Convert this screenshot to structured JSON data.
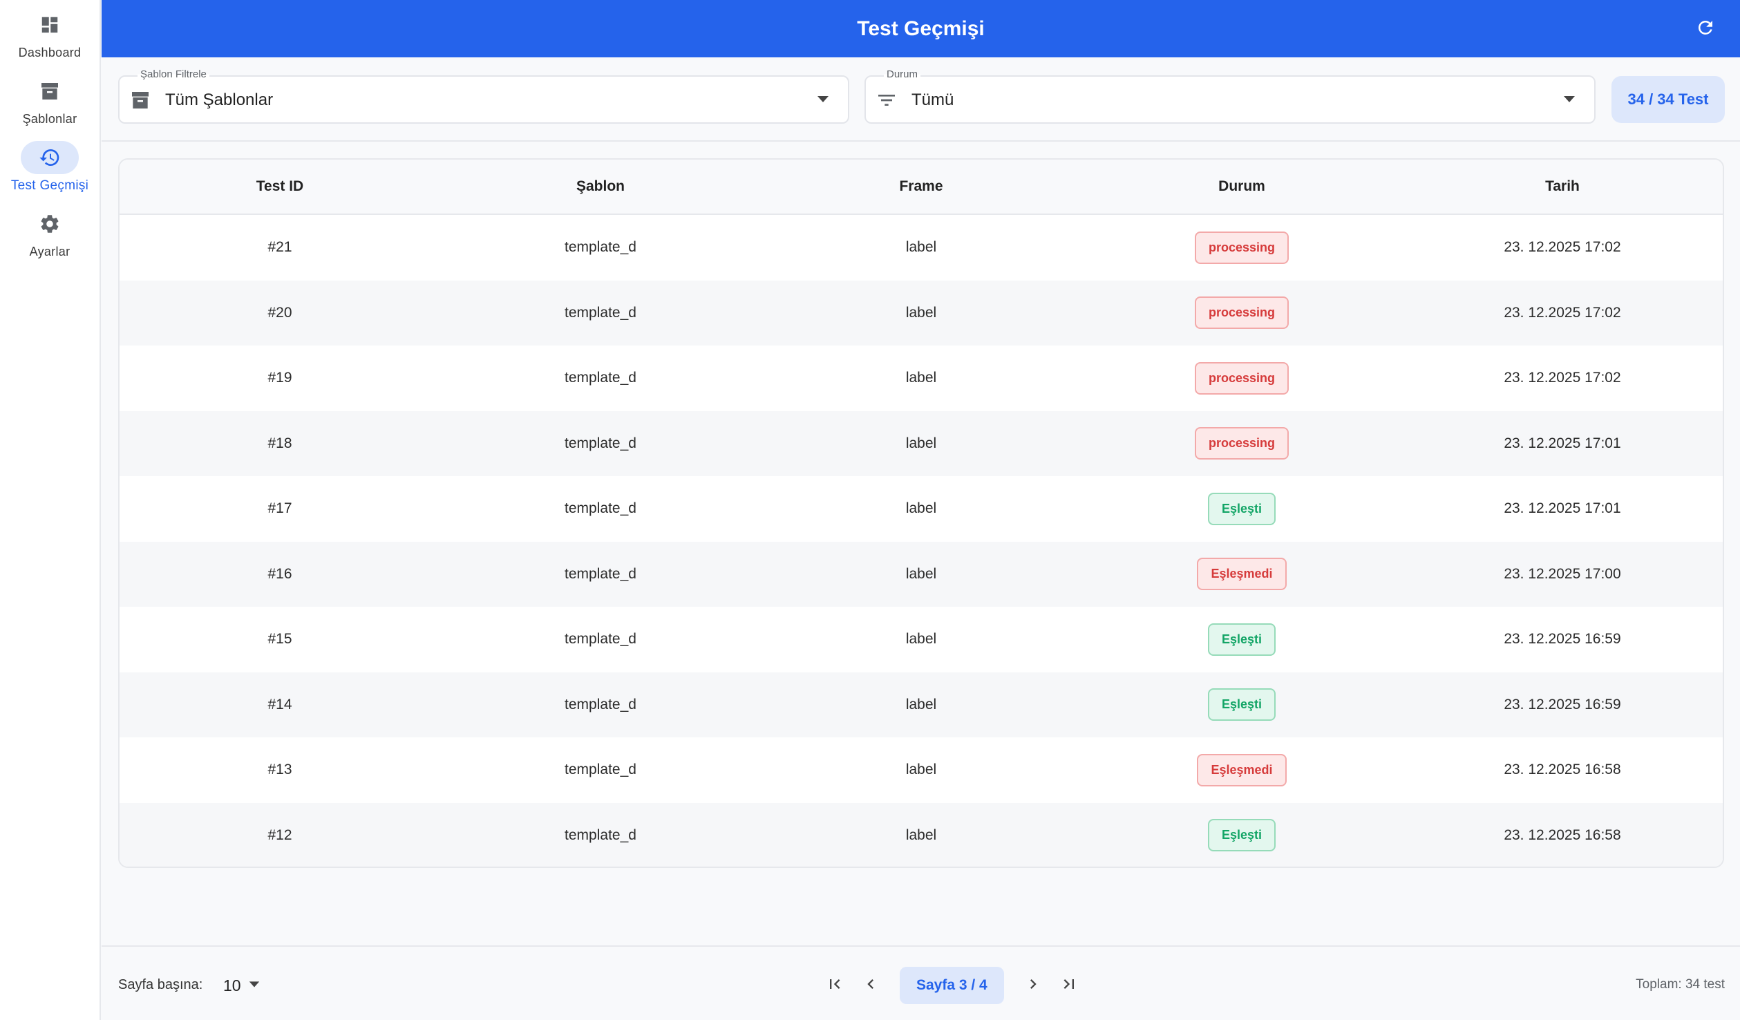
{
  "sidebar": {
    "items": [
      {
        "label": "Dashboard",
        "icon": "dashboard-icon"
      },
      {
        "label": "Şablonlar",
        "icon": "archive-icon"
      },
      {
        "label": "Test Geçmişi",
        "icon": "history-icon",
        "active": true
      },
      {
        "label": "Ayarlar",
        "icon": "gear-icon"
      }
    ]
  },
  "header": {
    "title": "Test Geçmişi",
    "refresh_icon": "refresh-icon"
  },
  "filters": {
    "template": {
      "legend": "Şablon Filtrele",
      "value": "Tüm Şablonlar",
      "icon": "archive-icon"
    },
    "status": {
      "legend": "Durum",
      "value": "Tümü",
      "icon": "filter-icon"
    },
    "count": "34 / 34 Test"
  },
  "table": {
    "headers": [
      "Test ID",
      "Şablon",
      "Frame",
      "Durum",
      "Tarih"
    ],
    "rows": [
      {
        "id": "#21",
        "template": "template_d",
        "frame": "label",
        "status": "processing",
        "date": "23. 12.2025 17:02"
      },
      {
        "id": "#20",
        "template": "template_d",
        "frame": "label",
        "status": "processing",
        "date": "23. 12.2025 17:02"
      },
      {
        "id": "#19",
        "template": "template_d",
        "frame": "label",
        "status": "processing",
        "date": "23. 12.2025 17:02"
      },
      {
        "id": "#18",
        "template": "template_d",
        "frame": "label",
        "status": "processing",
        "date": "23. 12.2025 17:01"
      },
      {
        "id": "#17",
        "template": "template_d",
        "frame": "label",
        "status": "Eşleşti",
        "date": "23. 12.2025 17:01"
      },
      {
        "id": "#16",
        "template": "template_d",
        "frame": "label",
        "status": "Eşleşmedi",
        "date": "23. 12.2025 17:00"
      },
      {
        "id": "#15",
        "template": "template_d",
        "frame": "label",
        "status": "Eşleşti",
        "date": "23. 12.2025 16:59"
      },
      {
        "id": "#14",
        "template": "template_d",
        "frame": "label",
        "status": "Eşleşti",
        "date": "23. 12.2025 16:59"
      },
      {
        "id": "#13",
        "template": "template_d",
        "frame": "label",
        "status": "Eşleşmedi",
        "date": "23. 12.2025 16:58"
      },
      {
        "id": "#12",
        "template": "template_d",
        "frame": "label",
        "status": "Eşleşti",
        "date": "23. 12.2025 16:58"
      }
    ]
  },
  "footer": {
    "per_page_label": "Sayfa başına:",
    "per_page_value": "10",
    "page_label": "Sayfa 3 / 4",
    "total_text": "Toplam:  34 test"
  },
  "colors": {
    "primary": "#2563eb",
    "primary_light": "#dde7fb",
    "success": "#13a566",
    "danger": "#d63b3b"
  }
}
